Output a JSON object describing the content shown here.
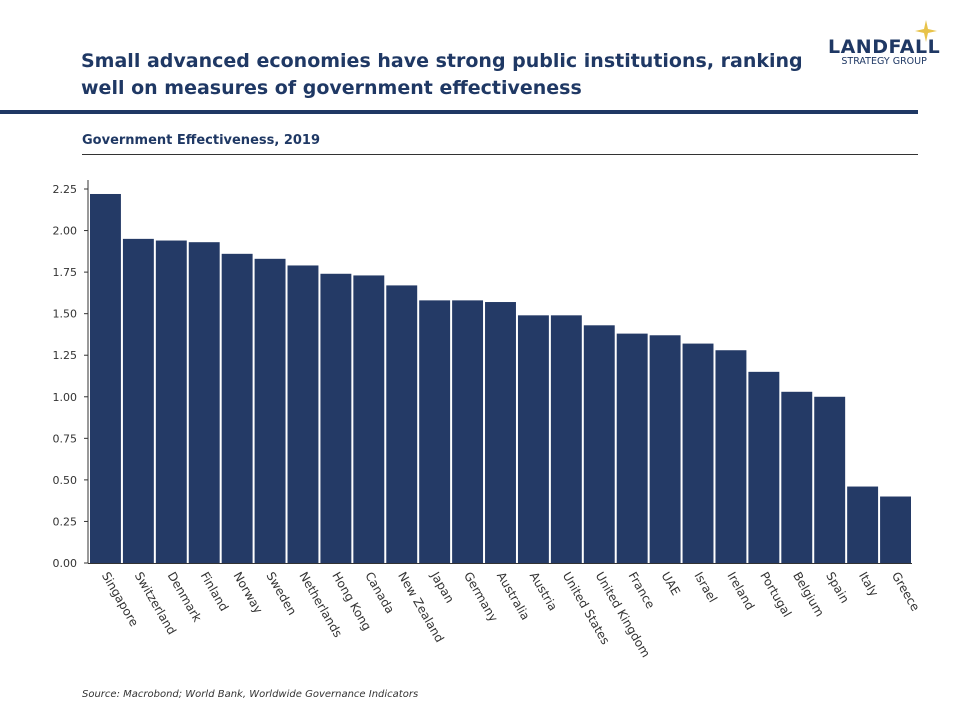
{
  "header": {
    "title": "Small advanced economies have strong public institutions, ranking well on measures of government effectiveness",
    "logo_line1": "LANDFALL",
    "logo_line2": "STRATEGY GROUP",
    "logo_star_color": "#e8c34a"
  },
  "source": "Source: Macrobond;  World Bank, Worldwide Governance Indicators",
  "chart_data": {
    "type": "bar",
    "title": "Government Effectiveness, 2019",
    "xlabel": "",
    "ylabel": "",
    "ylim": [
      0,
      2.25
    ],
    "yticks": [
      "0.00",
      "0.25",
      "0.50",
      "0.75",
      "1.00",
      "1.25",
      "1.50",
      "1.75",
      "2.00",
      "2.25"
    ],
    "grid": false,
    "bar_color": "#243a66",
    "categories": [
      "Singapore",
      "Switzerland",
      "Denmark",
      "Finland",
      "Norway",
      "Sweden",
      "Netherlands",
      "Hong Kong",
      "Canada",
      "New Zealand",
      "Japan",
      "Germany",
      "Australia",
      "Austria",
      "United States",
      "United Kingdom",
      "France",
      "UAE",
      "Israel",
      "Ireland",
      "Portugal",
      "Belgium",
      "Spain",
      "Italy",
      "Greece"
    ],
    "values": [
      2.22,
      1.95,
      1.94,
      1.93,
      1.86,
      1.83,
      1.79,
      1.74,
      1.73,
      1.67,
      1.58,
      1.58,
      1.57,
      1.49,
      1.49,
      1.43,
      1.38,
      1.37,
      1.32,
      1.28,
      1.15,
      1.03,
      1.0,
      0.46,
      0.4
    ]
  }
}
